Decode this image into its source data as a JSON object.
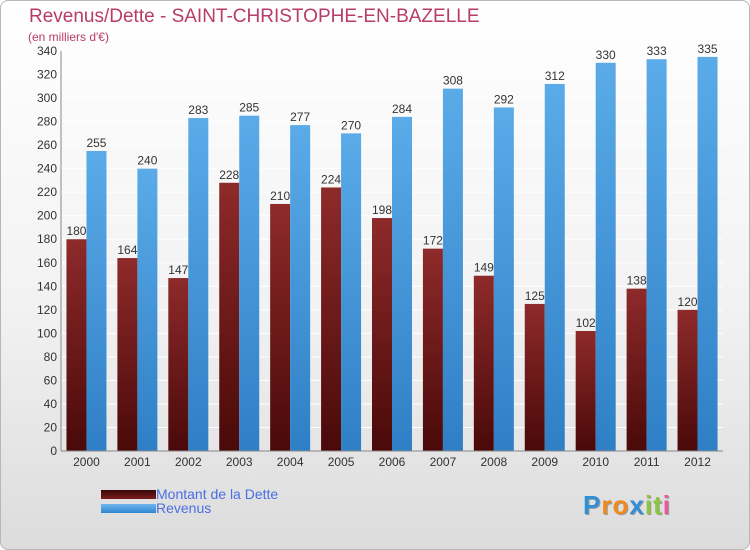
{
  "title": "Revenus/Dette - SAINT-CHRISTOPHE-EN-BAZELLE",
  "subtitle": "(en milliers d'€)",
  "logo": {
    "text": "Proxiti",
    "letters": [
      {
        "ch": "P",
        "color": "#2f8fd8"
      },
      {
        "ch": "r",
        "color": "#f08a1c"
      },
      {
        "ch": "o",
        "color": "#f08a1c"
      },
      {
        "ch": "x",
        "color": "#2f8fd8"
      },
      {
        "ch": "i",
        "color": "#8cc63f"
      },
      {
        "ch": "t",
        "color": "#8cc63f"
      },
      {
        "ch": "i",
        "color": "#e85a9b"
      }
    ]
  },
  "colors": {
    "dette": "#7a1c1c",
    "revenus": "#4a9de0",
    "grid": "#ffffff",
    "axis_text": "#333333",
    "title": "#b83b6a",
    "legend_text": "#4a6fe3"
  },
  "chart_data": {
    "type": "bar",
    "title": "Revenus/Dette - SAINT-CHRISTOPHE-EN-BAZELLE",
    "ylabel": "(en milliers d'€)",
    "xlabel": "",
    "categories": [
      "2000",
      "2001",
      "2002",
      "2003",
      "2004",
      "2005",
      "2006",
      "2007",
      "2008",
      "2009",
      "2010",
      "2011",
      "2012"
    ],
    "series": [
      {
        "name": "Montant de la Dette",
        "values": [
          180,
          164,
          147,
          228,
          210,
          224,
          198,
          172,
          149,
          125,
          102,
          138,
          120
        ]
      },
      {
        "name": "Revenus",
        "values": [
          255,
          240,
          283,
          285,
          277,
          270,
          284,
          308,
          292,
          312,
          330,
          333,
          335
        ]
      }
    ],
    "ylim": [
      0,
      340
    ],
    "yticks": [
      0,
      20,
      40,
      60,
      80,
      100,
      120,
      140,
      160,
      180,
      200,
      220,
      240,
      260,
      280,
      300,
      320,
      340
    ],
    "grid": true,
    "legend_position": "bottom-left"
  }
}
